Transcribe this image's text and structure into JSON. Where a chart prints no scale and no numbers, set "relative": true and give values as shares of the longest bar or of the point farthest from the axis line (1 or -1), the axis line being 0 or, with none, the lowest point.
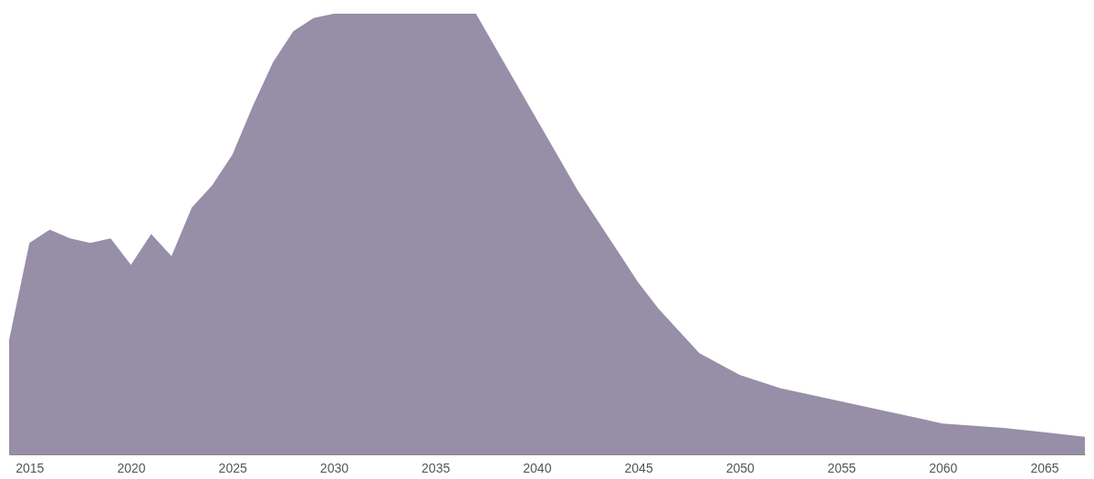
{
  "chart_data": {
    "type": "area",
    "relative": true,
    "grid": false,
    "x": [
      2014,
      2015,
      2016,
      2017,
      2018,
      2019,
      2020,
      2021,
      2022,
      2023,
      2024,
      2025,
      2026,
      2027,
      2028,
      2029,
      2030,
      2037,
      2038,
      2039,
      2040,
      2041,
      2042,
      2043,
      2044,
      2045,
      2046,
      2047,
      2048,
      2050,
      2052,
      2055,
      2058,
      2060,
      2063,
      2065,
      2067
    ],
    "series": [
      {
        "color": "#978ea8",
        "values": [
          0.26,
          0.48,
          0.51,
          0.49,
          0.48,
          0.49,
          0.43,
          0.5,
          0.45,
          0.56,
          0.61,
          0.68,
          0.79,
          0.89,
          0.96,
          0.99,
          1,
          1,
          0.92,
          0.84,
          0.76,
          0.68,
          0.6,
          0.53,
          0.46,
          0.39,
          0.33,
          0.28,
          0.23,
          0.18,
          0.15,
          0.12,
          0.09,
          0.07,
          0.06,
          0.05,
          0.04
        ]
      }
    ],
    "xlim": [
      2014,
      2067
    ],
    "xticks": [
      2015,
      2020,
      2025,
      2030,
      2035,
      2040,
      2045,
      2050,
      2055,
      2060,
      2065
    ]
  }
}
